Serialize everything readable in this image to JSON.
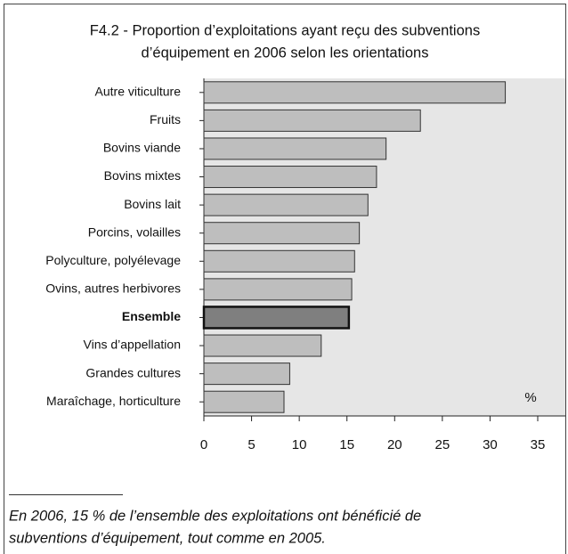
{
  "chart_data": {
    "type": "barh",
    "title": [
      "F4.2 - Proportion d’exploitations ayant reçu des subventions",
      "d’équipement en 2006 selon les orientations"
    ],
    "categories": [
      "Autre viticulture",
      "Fruits",
      "Bovins viande",
      "Bovins mixtes",
      "Bovins lait",
      "Porcins, volailles",
      "Polyculture, polyélevage",
      "Ovins, autres herbivores",
      "Ensemble",
      "Vins d’appellation",
      "Grandes cultures",
      "Maraîchage, horticulture"
    ],
    "values": [
      31.6,
      22.7,
      19.1,
      18.1,
      17.2,
      16.3,
      15.8,
      15.5,
      15.2,
      12.3,
      9.0,
      8.4
    ],
    "colors": [
      "#bebebe",
      "#bebebe",
      "#bebebe",
      "#bebebe",
      "#bebebe",
      "#bebebe",
      "#bebebe",
      "#bebebe",
      "#7f7f7f",
      "#bebebe",
      "#bebebe",
      "#bebebe"
    ],
    "xlim": [
      0,
      35
    ],
    "xticks": [
      0,
      5,
      10,
      15,
      20,
      25,
      30,
      35
    ],
    "unit": "%",
    "note": [
      "En 2006, 15 % de l’ensemble des exploitations ont bénéficié de",
      "subventions d’équipement, tout comme en 2005."
    ]
  }
}
